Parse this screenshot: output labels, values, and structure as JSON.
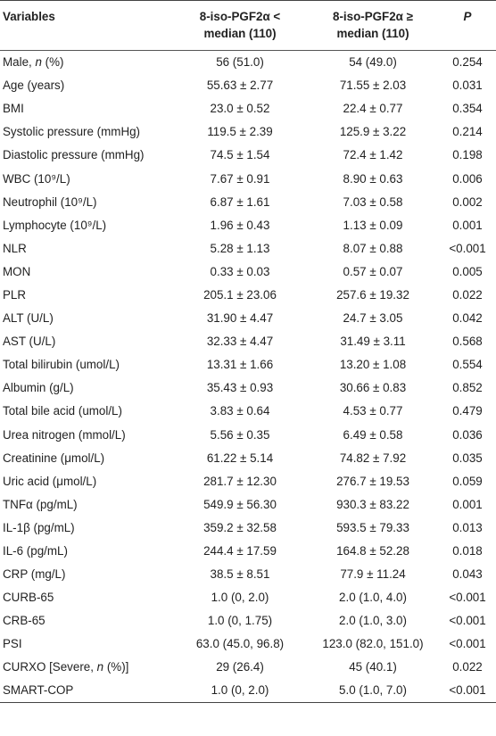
{
  "headers": {
    "variables": "Variables",
    "low": [
      "8-iso-PGF2α <",
      "median (110)"
    ],
    "high": [
      "8-iso-PGF2α ≥",
      "median (110)"
    ],
    "p": "P"
  },
  "rows": [
    [
      "Male, n (%)",
      "56 (51.0)",
      "54 (49.0)",
      "0.254"
    ],
    [
      "Age (years)",
      "55.63 ± 2.77",
      "71.55 ± 2.03",
      "0.031"
    ],
    [
      "BMI",
      "23.0 ± 0.52",
      "22.4 ± 0.77",
      "0.354"
    ],
    [
      "Systolic pressure (mmHg)",
      "119.5 ± 2.39",
      "125.9 ± 3.22",
      "0.214"
    ],
    [
      "Diastolic pressure (mmHg)",
      "74.5 ± 1.54",
      "72.4 ± 1.42",
      "0.198"
    ],
    [
      "WBC (10⁹/L)",
      "7.67 ± 0.91",
      "8.90 ± 0.63",
      "0.006"
    ],
    [
      "Neutrophil (10⁹/L)",
      "6.87 ± 1.61",
      "7.03 ± 0.58",
      "0.002"
    ],
    [
      "Lymphocyte (10⁹/L)",
      "1.96 ± 0.43",
      "1.13 ± 0.09",
      "0.001"
    ],
    [
      "NLR",
      "5.28 ± 1.13",
      "8.07 ± 0.88",
      "<0.001"
    ],
    [
      "MON",
      "0.33 ± 0.03",
      "0.57 ± 0.07",
      "0.005"
    ],
    [
      "PLR",
      "205.1 ± 23.06",
      "257.6 ± 19.32",
      "0.022"
    ],
    [
      "ALT (U/L)",
      "31.90 ± 4.47",
      "24.7 ± 3.05",
      "0.042"
    ],
    [
      "AST (U/L)",
      "32.33 ± 4.47",
      "31.49 ± 3.11",
      "0.568"
    ],
    [
      "Total bilirubin (umol/L)",
      "13.31 ± 1.66",
      "13.20 ± 1.08",
      "0.554"
    ],
    [
      "Albumin (g/L)",
      "35.43 ± 0.93",
      "30.66 ± 0.83",
      "0.852"
    ],
    [
      "Total bile acid (umol/L)",
      "3.83 ± 0.64",
      "4.53 ± 0.77",
      "0.479"
    ],
    [
      "Urea nitrogen (mmol/L)",
      "5.56 ± 0.35",
      "6.49 ± 0.58",
      "0.036"
    ],
    [
      "Creatinine (μmol/L)",
      "61.22 ± 5.14",
      "74.82 ± 7.92",
      "0.035"
    ],
    [
      "Uric acid (μmol/L)",
      "281.7 ± 12.30",
      "276.7 ± 19.53",
      "0.059"
    ],
    [
      "TNFα (pg/mL)",
      "549.9 ± 56.30",
      "930.3 ± 83.22",
      "0.001"
    ],
    [
      "IL-1β (pg/mL)",
      "359.2 ± 32.58",
      "593.5 ± 79.33",
      "0.013"
    ],
    [
      "IL-6 (pg/mL)",
      "244.4 ± 17.59",
      "164.8 ± 52.28",
      "0.018"
    ],
    [
      "CRP (mg/L)",
      "38.5 ± 8.51",
      "77.9 ± 11.24",
      "0.043"
    ],
    [
      "CURB-65",
      "1.0 (0, 2.0)",
      "2.0 (1.0, 4.0)",
      "<0.001"
    ],
    [
      "CRB-65",
      "1.0 (0, 1.75)",
      "2.0 (1.0, 3.0)",
      "<0.001"
    ],
    [
      "PSI",
      "63.0 (45.0, 96.8)",
      "123.0 (82.0, 151.0)",
      "<0.001"
    ],
    [
      "CURXO [Severe, n (%)]",
      "29 (26.4)",
      "45 (40.1)",
      "0.022"
    ],
    [
      "SMART-COP",
      "1.0 (0, 2.0)",
      "5.0 (1.0, 7.0)",
      "<0.001"
    ]
  ]
}
